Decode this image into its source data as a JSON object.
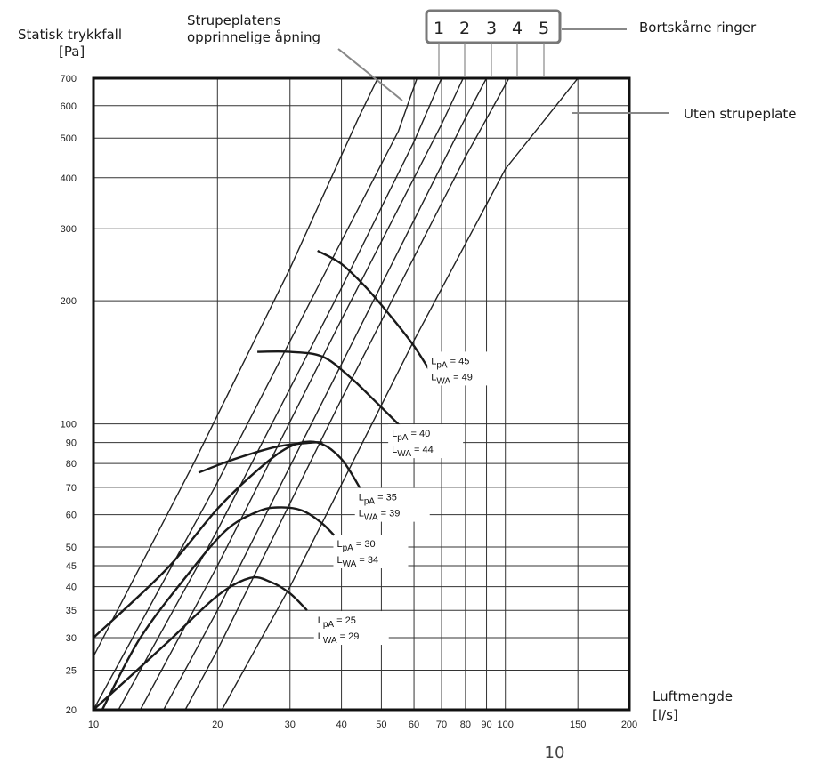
{
  "chart_data": {
    "type": "line",
    "ylabel": "Statisk trykkfall",
    "yunit": "[Pa]",
    "xlabel": "Luftmengde",
    "xunit": "[l/s]",
    "xscale": "log",
    "yscale": "log",
    "xlim": [
      10,
      200
    ],
    "ylim": [
      20,
      700
    ],
    "xticks": [
      10,
      20,
      30,
      40,
      50,
      60,
      70,
      80,
      90,
      100,
      150,
      200
    ],
    "yticks": [
      20,
      25,
      30,
      35,
      40,
      45,
      50,
      60,
      70,
      80,
      90,
      100,
      200,
      300,
      400,
      500,
      600,
      700
    ],
    "grid": true,
    "annotations": {
      "original_opening": "Strupeplatens opprinnelige åpning",
      "rings": "Bortskårne ringer",
      "ring_numbers": [
        "1",
        "2",
        "3",
        "4",
        "5"
      ],
      "no_plate": "Uten strupeplate"
    },
    "plate_lines": [
      {
        "id": "original",
        "points": [
          [
            10,
            27
          ],
          [
            17.5,
            80
          ],
          [
            30,
            240
          ],
          [
            44,
            560
          ],
          [
            49,
            700
          ]
        ]
      },
      {
        "id": "1",
        "points": [
          [
            10,
            20
          ],
          [
            20,
            72
          ],
          [
            40,
            280
          ],
          [
            55,
            520
          ],
          [
            61,
            700
          ]
        ]
      },
      {
        "id": "2",
        "points": [
          [
            11.5,
            20
          ],
          [
            20,
            55
          ],
          [
            40,
            215
          ],
          [
            60,
            490
          ],
          [
            70,
            700
          ]
        ]
      },
      {
        "id": "3",
        "points": [
          [
            13,
            20
          ],
          [
            20,
            45
          ],
          [
            40,
            180
          ],
          [
            70,
            540
          ],
          [
            79,
            700
          ]
        ]
      },
      {
        "id": "4",
        "points": [
          [
            14.8,
            20
          ],
          [
            20,
            35
          ],
          [
            40,
            140
          ],
          [
            80,
            560
          ],
          [
            90,
            700
          ]
        ]
      },
      {
        "id": "5",
        "points": [
          [
            16.7,
            20
          ],
          [
            20,
            28
          ],
          [
            40,
            115
          ],
          [
            80,
            450
          ],
          [
            102,
            700
          ]
        ]
      },
      {
        "id": "no_plate",
        "points": [
          [
            20.5,
            20
          ],
          [
            30,
            40
          ],
          [
            60,
            160
          ],
          [
            100,
            420
          ],
          [
            150,
            700
          ]
        ]
      }
    ],
    "sound_curves": [
      {
        "lpa_label": "LpA = 25",
        "lwa_label": "LWA = 29",
        "label_at": [
          35,
          32.5
        ],
        "points": [
          [
            10,
            20
          ],
          [
            15,
            29
          ],
          [
            20,
            38
          ],
          [
            24,
            42
          ],
          [
            27,
            41
          ],
          [
            30,
            38.5
          ],
          [
            33,
            35
          ]
        ]
      },
      {
        "lpa_label": "LpA = 30",
        "lwa_label": "LWA = 34",
        "label_at": [
          39,
          50
        ],
        "points": [
          [
            10.5,
            20
          ],
          [
            13,
            30
          ],
          [
            17,
            43
          ],
          [
            21,
            55
          ],
          [
            25,
            61
          ],
          [
            28,
            62.5
          ],
          [
            32,
            61.5
          ],
          [
            36,
            57
          ],
          [
            40,
            51
          ]
        ]
      },
      {
        "lpa_label": "LpA = 35",
        "lwa_label": "LWA = 39",
        "label_at": [
          44,
          65
        ],
        "points": [
          [
            10,
            30
          ],
          [
            15,
            44
          ],
          [
            20,
            62
          ],
          [
            25,
            77
          ],
          [
            30,
            88
          ],
          [
            35,
            90
          ],
          [
            40,
            82
          ],
          [
            45,
            68
          ]
        ]
      },
      {
        "lpa_label": "LpA = 40",
        "lwa_label": "LWA = 44",
        "label_at": [
          53,
          93
        ],
        "points": [
          [
            18,
            76
          ],
          [
            22,
            82
          ],
          [
            28,
            88
          ],
          [
            34,
            90
          ],
          [
            36,
            90
          ]
        ]
      },
      {
        "lpa_label": "LpA = 40",
        "lwa_label": "LWA = 44",
        "label_at": [
          53,
          93
        ],
        "points": [
          [
            25,
            150
          ],
          [
            30,
            150
          ],
          [
            36,
            146
          ],
          [
            42,
            130
          ],
          [
            49,
            112
          ],
          [
            56,
            98
          ]
        ]
      },
      {
        "lpa_label": "LpA = 45",
        "lwa_label": "LWA = 49",
        "label_at": [
          66,
          140
        ],
        "points": [
          [
            35,
            265
          ],
          [
            40,
            246
          ],
          [
            46,
            215
          ],
          [
            53,
            182
          ],
          [
            60,
            155
          ],
          [
            67,
            130
          ]
        ]
      }
    ]
  },
  "page_number": "10"
}
